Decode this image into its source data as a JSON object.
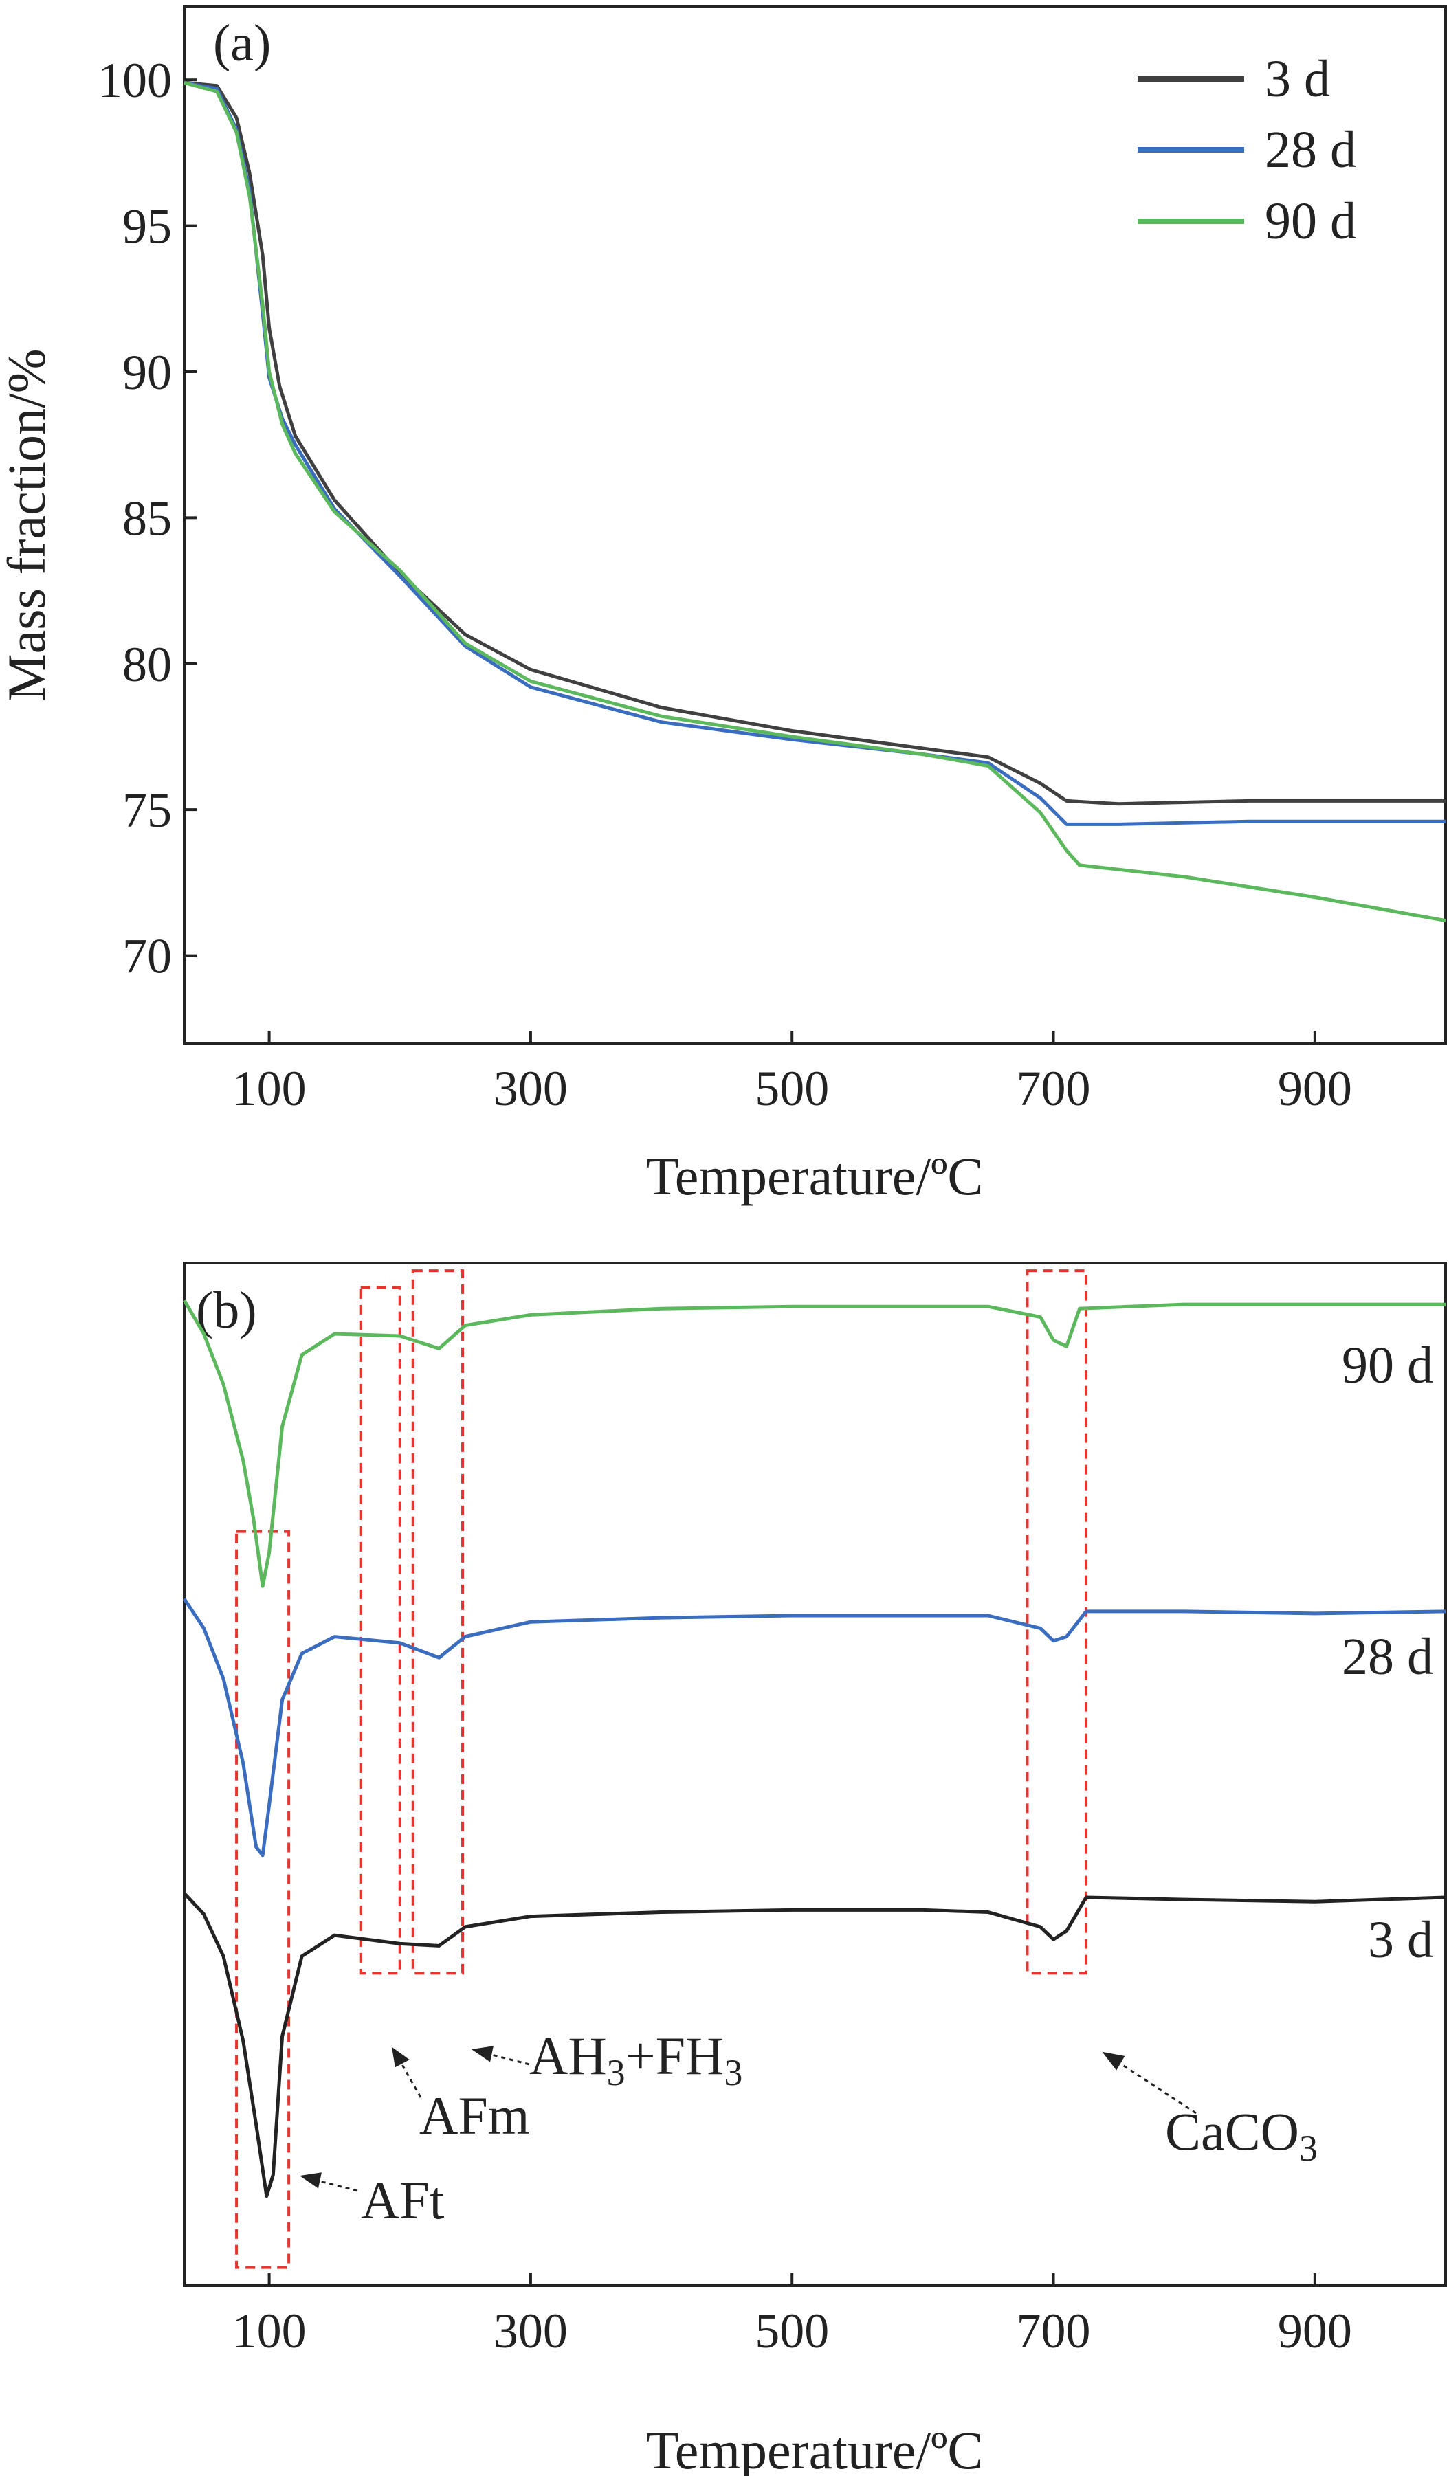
{
  "chart_data": [
    {
      "type": "line",
      "panel_label": "(a)",
      "xlabel": "Temperature/ºC",
      "ylabel": "Mass fraction/%",
      "xlim": [
        35,
        1000
      ],
      "ylim": [
        67,
        102.5
      ],
      "x_ticks": [
        100,
        300,
        500,
        700,
        900
      ],
      "y_ticks": [
        70,
        75,
        80,
        85,
        90,
        95,
        100
      ],
      "grid": false,
      "legend_position": "top-right",
      "series": [
        {
          "name": "3 d",
          "color": "#404040",
          "points": [
            [
              35,
              99.9
            ],
            [
              60,
              99.8
            ],
            [
              75,
              98.7
            ],
            [
              85,
              96.8
            ],
            [
              95,
              94.0
            ],
            [
              100,
              91.5
            ],
            [
              108,
              89.5
            ],
            [
              120,
              87.8
            ],
            [
              150,
              85.6
            ],
            [
              200,
              83.1
            ],
            [
              250,
              81.0
            ],
            [
              300,
              79.8
            ],
            [
              400,
              78.5
            ],
            [
              500,
              77.7
            ],
            [
              600,
              77.1
            ],
            [
              650,
              76.8
            ],
            [
              690,
              75.9
            ],
            [
              710,
              75.3
            ],
            [
              750,
              75.2
            ],
            [
              850,
              75.3
            ],
            [
              1000,
              75.3
            ]
          ]
        },
        {
          "name": "28 d",
          "color": "#3a6cc0",
          "points": [
            [
              35,
              99.9
            ],
            [
              60,
              99.7
            ],
            [
              75,
              98.3
            ],
            [
              85,
              96.2
            ],
            [
              95,
              92.0
            ],
            [
              100,
              89.8
            ],
            [
              110,
              88.4
            ],
            [
              120,
              87.5
            ],
            [
              150,
              85.3
            ],
            [
              200,
              83.0
            ],
            [
              250,
              80.6
            ],
            [
              300,
              79.2
            ],
            [
              400,
              78.0
            ],
            [
              500,
              77.4
            ],
            [
              600,
              76.9
            ],
            [
              650,
              76.6
            ],
            [
              690,
              75.4
            ],
            [
              710,
              74.5
            ],
            [
              750,
              74.5
            ],
            [
              850,
              74.6
            ],
            [
              1000,
              74.6
            ]
          ]
        },
        {
          "name": "90 d",
          "color": "#5cb85c",
          "points": [
            [
              35,
              99.9
            ],
            [
              60,
              99.6
            ],
            [
              75,
              98.2
            ],
            [
              85,
              96.0
            ],
            [
              95,
              92.3
            ],
            [
              100,
              90.0
            ],
            [
              110,
              88.2
            ],
            [
              120,
              87.2
            ],
            [
              150,
              85.2
            ],
            [
              200,
              83.2
            ],
            [
              250,
              80.7
            ],
            [
              300,
              79.4
            ],
            [
              400,
              78.2
            ],
            [
              500,
              77.5
            ],
            [
              600,
              76.9
            ],
            [
              650,
              76.5
            ],
            [
              690,
              74.9
            ],
            [
              710,
              73.6
            ],
            [
              720,
              73.1
            ],
            [
              800,
              72.7
            ],
            [
              900,
              72.0
            ],
            [
              1000,
              71.2
            ]
          ]
        }
      ]
    },
    {
      "type": "line",
      "panel_label": "(b)",
      "xlabel": "Temperature/ºC",
      "xlim": [
        35,
        1000
      ],
      "x_ticks": [
        100,
        300,
        500,
        700,
        900
      ],
      "grid": false,
      "series": [
        {
          "name": "90 d",
          "color": "#5cb85c",
          "points": [
            [
              35,
              0.0
            ],
            [
              50,
              -0.8
            ],
            [
              65,
              -2.0
            ],
            [
              80,
              -3.8
            ],
            [
              88,
              -5.2
            ],
            [
              95,
              -6.8
            ],
            [
              100,
              -6.0
            ],
            [
              110,
              -3.0
            ],
            [
              125,
              -1.3
            ],
            [
              150,
              -0.8
            ],
            [
              200,
              -0.85
            ],
            [
              230,
              -1.15
            ],
            [
              250,
              -0.6
            ],
            [
              300,
              -0.35
            ],
            [
              400,
              -0.2
            ],
            [
              500,
              -0.15
            ],
            [
              600,
              -0.15
            ],
            [
              650,
              -0.15
            ],
            [
              690,
              -0.4
            ],
            [
              700,
              -0.95
            ],
            [
              710,
              -1.1
            ],
            [
              720,
              -0.2
            ],
            [
              800,
              -0.1
            ],
            [
              900,
              -0.1
            ],
            [
              1000,
              -0.1
            ]
          ]
        },
        {
          "name": "28 d",
          "color": "#3a6cc0",
          "points": [
            [
              35,
              -7.1
            ],
            [
              50,
              -7.8
            ],
            [
              65,
              -9.0
            ],
            [
              80,
              -11.0
            ],
            [
              90,
              -13.0
            ],
            [
              95,
              -13.2
            ],
            [
              100,
              -12.0
            ],
            [
              110,
              -9.5
            ],
            [
              125,
              -8.4
            ],
            [
              150,
              -8.0
            ],
            [
              200,
              -8.15
            ],
            [
              230,
              -8.5
            ],
            [
              250,
              -8.0
            ],
            [
              300,
              -7.65
            ],
            [
              400,
              -7.55
            ],
            [
              500,
              -7.5
            ],
            [
              600,
              -7.5
            ],
            [
              650,
              -7.5
            ],
            [
              690,
              -7.8
            ],
            [
              700,
              -8.1
            ],
            [
              710,
              -8.0
            ],
            [
              725,
              -7.4
            ],
            [
              800,
              -7.4
            ],
            [
              900,
              -7.45
            ],
            [
              1000,
              -7.4
            ]
          ]
        },
        {
          "name": "3 d",
          "color": "#222222",
          "points": [
            [
              35,
              -14.1
            ],
            [
              50,
              -14.6
            ],
            [
              65,
              -15.6
            ],
            [
              80,
              -17.6
            ],
            [
              90,
              -19.6
            ],
            [
              98,
              -21.3
            ],
            [
              103,
              -20.8
            ],
            [
              110,
              -17.5
            ],
            [
              125,
              -15.6
            ],
            [
              150,
              -15.1
            ],
            [
              200,
              -15.3
            ],
            [
              230,
              -15.35
            ],
            [
              250,
              -14.9
            ],
            [
              300,
              -14.65
            ],
            [
              400,
              -14.55
            ],
            [
              500,
              -14.5
            ],
            [
              600,
              -14.5
            ],
            [
              650,
              -14.55
            ],
            [
              690,
              -14.9
            ],
            [
              700,
              -15.2
            ],
            [
              710,
              -15.0
            ],
            [
              725,
              -14.2
            ],
            [
              800,
              -14.25
            ],
            [
              900,
              -14.3
            ],
            [
              1000,
              -14.2
            ]
          ]
        }
      ],
      "annotations": [
        {
          "sub_text": "",
          "text_main": "AFt",
          "range": [
            75,
            115
          ]
        },
        {
          "sub_text": "",
          "text_main": "AFm",
          "range": [
            170,
            200
          ]
        },
        {
          "text_parts": [
            "AH",
            "3",
            "+FH",
            "3"
          ],
          "range": [
            210,
            248
          ]
        },
        {
          "text_parts": [
            "CaCO",
            "3"
          ],
          "range": [
            680,
            725
          ]
        }
      ]
    }
  ]
}
